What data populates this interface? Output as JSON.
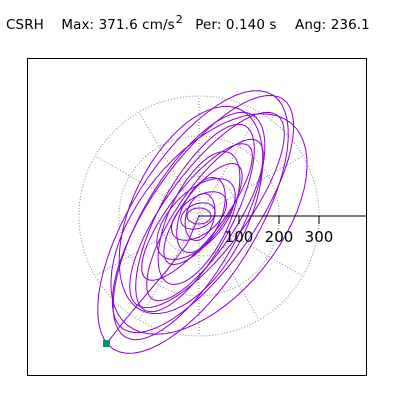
{
  "header": {
    "station": "CSRH",
    "max_label": "Max:",
    "max_value": "371.6",
    "max_unit": "cm/s",
    "max_unit_exp": "2",
    "per_label": "Per:",
    "per_value": "0.140 s",
    "ang_label": "Ang:",
    "ang_value": "236.1"
  },
  "plot": {
    "axis_labels": [
      "100",
      "200",
      "300"
    ],
    "radial_rings": [
      100,
      200,
      300
    ],
    "spoke_angles_deg": [
      30,
      60,
      90,
      120,
      150,
      210,
      240,
      270,
      300,
      330
    ],
    "trace_color": "#8a00d4",
    "grid_color": "#888888",
    "end_marker_color": "#0a8f6a"
  }
}
